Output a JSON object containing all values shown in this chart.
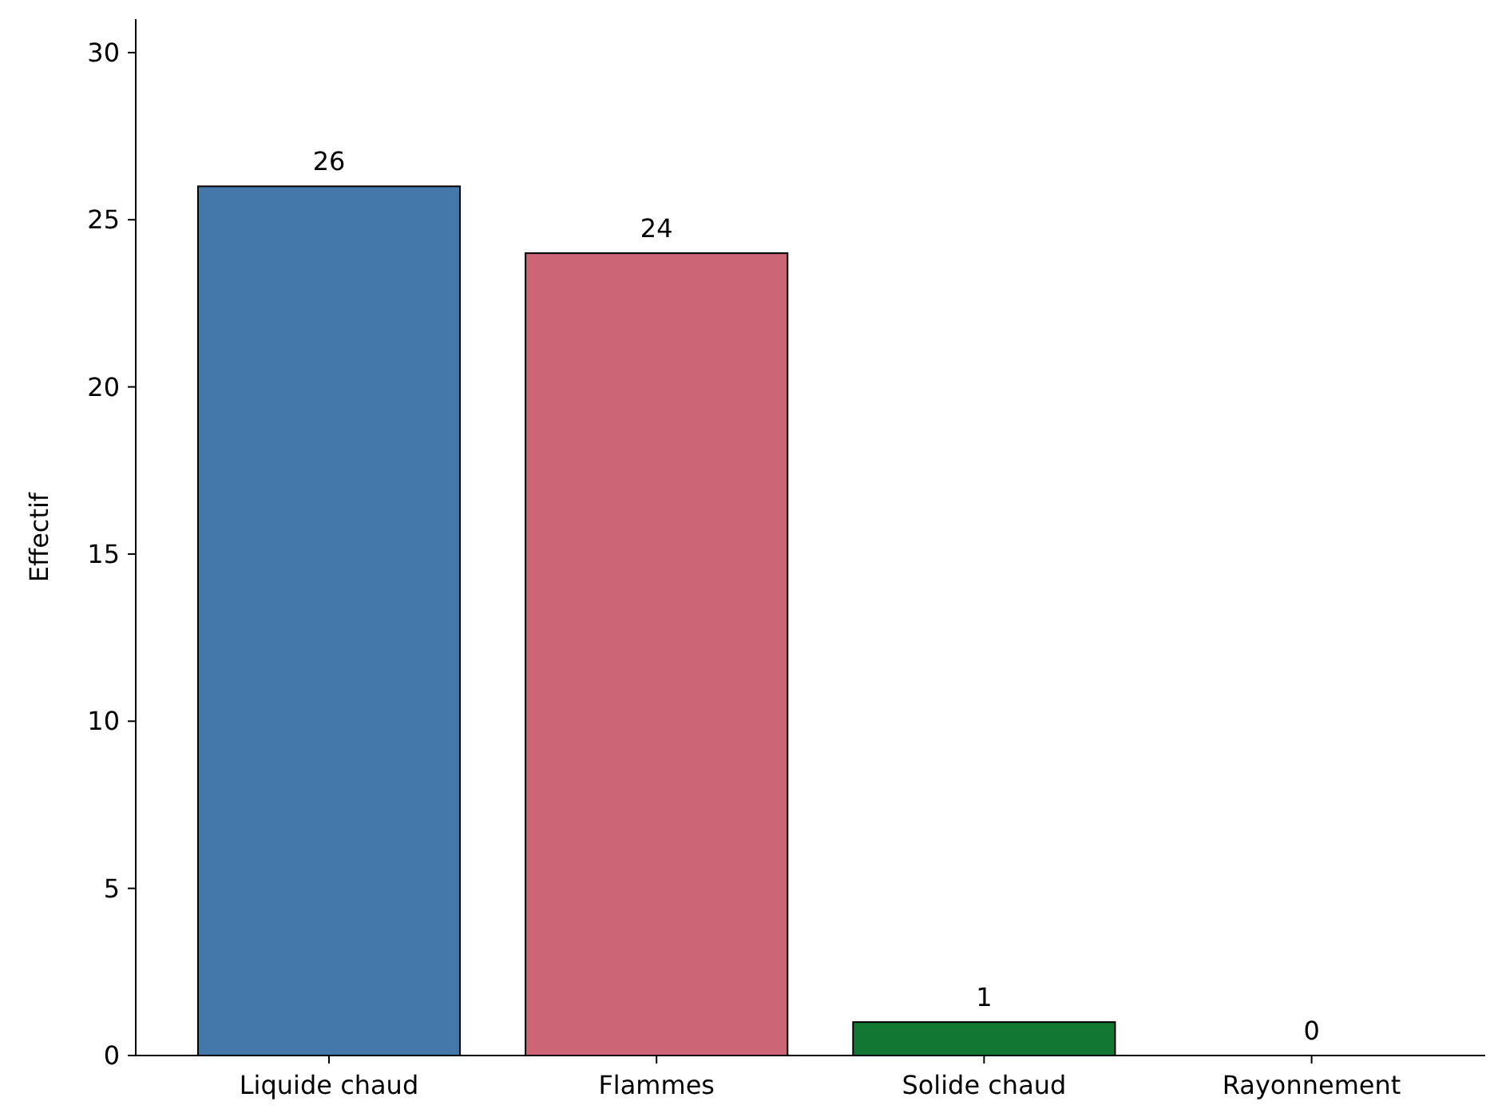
{
  "chart_data": {
    "type": "bar",
    "ylabel": "Effectif",
    "categories": [
      "Liquide chaud",
      "Flammes",
      "Solide chaud",
      "Rayonnement"
    ],
    "values": [
      26,
      24,
      1,
      0
    ],
    "colors": [
      "#4477aa",
      "#cc6677",
      "#117733",
      "#ddcc77"
    ],
    "ylim": [
      0,
      31
    ],
    "yticks": [
      0,
      5,
      10,
      15,
      20,
      25,
      30
    ],
    "data_labels": true,
    "grid": false
  }
}
